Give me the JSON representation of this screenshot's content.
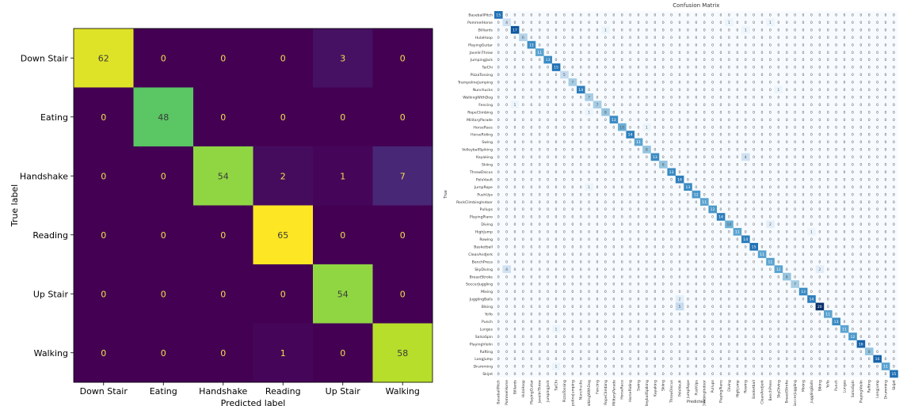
{
  "chart_data": [
    {
      "type": "heatmap",
      "title": "",
      "xlabel": "Predicted label",
      "ylabel": "True label",
      "categories": [
        "Down Stair",
        "Eating",
        "Handshake",
        "Reading",
        "Up Stair",
        "Walking"
      ],
      "matrix": [
        [
          62,
          0,
          0,
          0,
          3,
          0
        ],
        [
          0,
          48,
          0,
          0,
          0,
          0
        ],
        [
          0,
          0,
          54,
          2,
          1,
          7
        ],
        [
          0,
          0,
          0,
          65,
          0,
          0
        ],
        [
          0,
          0,
          0,
          0,
          54,
          0
        ],
        [
          0,
          0,
          0,
          1,
          0,
          58
        ]
      ],
      "vmax": 65,
      "colormap": "viridis"
    },
    {
      "type": "heatmap",
      "title": "Confusion Matrix",
      "xlabel": "Predicted",
      "ylabel": "True",
      "categories": [
        "BaseballPitch",
        "PommelHorse",
        "Billiards",
        "HulaHoop",
        "PlayingGuitar",
        "JavelinThrow",
        "JumpingJack",
        "TaiChi",
        "PizzaTossing",
        "TrampolineJumping",
        "Nunchucks",
        "WalkingWithDog",
        "Fencing",
        "RopeClimbing",
        "MilitaryParade",
        "HorseRace",
        "HorseRiding",
        "Swing",
        "VolleyballSpiking",
        "Kayaking",
        "Skiing",
        "ThrowDiscus",
        "PoleVault",
        "JumpRope",
        "PushUps",
        "RockClimbingIndoor",
        "Pullups",
        "PlayingPiano",
        "Diving",
        "HighJump",
        "Rowing",
        "Basketball",
        "CleanAndJerk",
        "BenchPress",
        "SkyDiving",
        "BreastStroke",
        "SoccerJuggling",
        "Mixing",
        "JugglingBalls",
        "Biking",
        "YoYo",
        "Punch",
        "Lunges",
        "SalsaSpin",
        "PlayingViolin",
        "Rafting",
        "LongJump",
        "Drumming",
        "Skijet"
      ],
      "diagonal": [
        15,
        4,
        17,
        6,
        13,
        11,
        13,
        15,
        5,
        7,
        14,
        7,
        7,
        8,
        13,
        10,
        14,
        11,
        8,
        13,
        8,
        13,
        14,
        13,
        12,
        11,
        12,
        14,
        10,
        11,
        14,
        15,
        11,
        11,
        11,
        8,
        7,
        13,
        14,
        20,
        11,
        13,
        11,
        12,
        16,
        8,
        16,
        11,
        15
      ],
      "off_diagonal": [
        {
          "row": 1,
          "col": 28,
          "value": 1
        },
        {
          "row": 1,
          "col": 33,
          "value": 1
        },
        {
          "row": 2,
          "col": 13,
          "value": 1
        },
        {
          "row": 2,
          "col": 30,
          "value": 1
        },
        {
          "row": 10,
          "col": 34,
          "value": 1
        },
        {
          "row": 12,
          "col": 2,
          "value": 1
        },
        {
          "row": 13,
          "col": 11,
          "value": 1
        },
        {
          "row": 15,
          "col": 18,
          "value": 1
        },
        {
          "row": 19,
          "col": 30,
          "value": 4
        },
        {
          "row": 23,
          "col": 11,
          "value": 1
        },
        {
          "row": 28,
          "col": 33,
          "value": 2
        },
        {
          "row": 29,
          "col": 38,
          "value": 1
        },
        {
          "row": 34,
          "col": 1,
          "value": 4
        },
        {
          "row": 34,
          "col": 39,
          "value": 2
        },
        {
          "row": 38,
          "col": 22,
          "value": 2
        },
        {
          "row": 39,
          "col": 22,
          "value": 5
        },
        {
          "row": 42,
          "col": 7,
          "value": 1
        },
        {
          "row": 47,
          "col": 7,
          "value": 1
        }
      ],
      "vmax": 20,
      "colormap": "blues"
    }
  ]
}
